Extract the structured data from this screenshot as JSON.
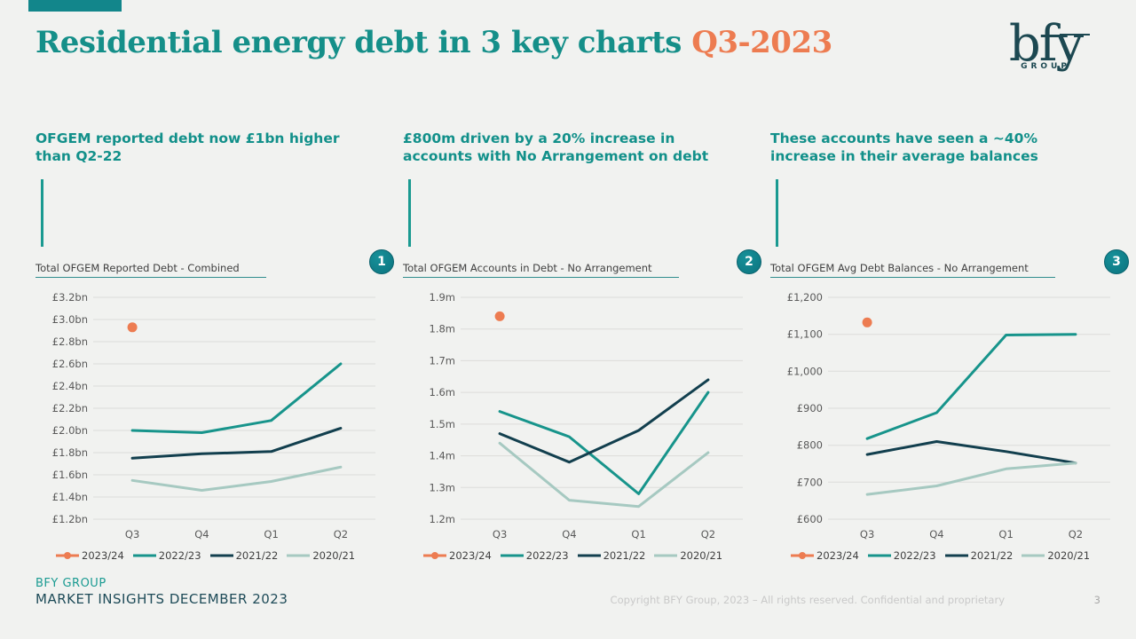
{
  "slide": {
    "title_main": "Residential energy debt in 3 key charts",
    "title_accent": "Q3-2023",
    "logo": {
      "text": "bfy",
      "subtext": "GROUP"
    },
    "footer": {
      "company": "BFY GROUP",
      "subtitle": "MARKET INSIGHTS DECEMBER 2023",
      "copyright": "Copyright BFY Group, 2023 – All rights reserved. Confidential and proprietary",
      "page_number": "3"
    },
    "colors": {
      "background": "#F1F2F0",
      "accent_teal": "#15908A",
      "accent_orange": "#ED7C51",
      "badge_teal": "#0E7F89",
      "gridline": "#DCDCDA",
      "tick_text": "#595959",
      "legend_text": "#3F3F3F"
    }
  },
  "chart_data": [
    {
      "type": "line",
      "heading": "OFGEM reported debt now £1bn higher than Q2-22",
      "title": "Total OFGEM Reported Debt - Combined",
      "badge": "1",
      "categories": [
        "Q3",
        "Q4",
        "Q1",
        "Q2"
      ],
      "ylim": [
        1.2,
        3.2
      ],
      "grid": true,
      "legend_position": "bottom",
      "y_ticks": [
        {
          "label": "£3.2bn",
          "value": 3.2
        },
        {
          "label": "£3.0bn",
          "value": 3.0
        },
        {
          "label": "£2.8bn",
          "value": 2.8
        },
        {
          "label": "£2.6bn",
          "value": 2.6
        },
        {
          "label": "£2.4bn",
          "value": 2.4
        },
        {
          "label": "£2.2bn",
          "value": 2.2
        },
        {
          "label": "£2.0bn",
          "value": 2.0
        },
        {
          "label": "£1.8bn",
          "value": 1.8
        },
        {
          "label": "£1.6bn",
          "value": 1.6
        },
        {
          "label": "£1.4bn",
          "value": 1.4
        },
        {
          "label": "£1.2bn",
          "value": 1.2
        }
      ],
      "series": [
        {
          "name": "2023/24",
          "color": "#ED7C51",
          "marker": "dot",
          "values": [
            2.93,
            null,
            null,
            null
          ]
        },
        {
          "name": "2022/23",
          "color": "#17948B",
          "values": [
            2.0,
            1.98,
            2.09,
            2.6
          ]
        },
        {
          "name": "2021/22",
          "color": "#123F4E",
          "values": [
            1.75,
            1.79,
            1.81,
            2.02
          ]
        },
        {
          "name": "2020/21",
          "color": "#A6C9C1",
          "values": [
            1.55,
            1.46,
            1.54,
            1.67
          ]
        }
      ]
    },
    {
      "type": "line",
      "heading": "£800m driven by a 20% increase in accounts with No Arrangement on debt",
      "title": "Total OFGEM Accounts in Debt - No Arrangement",
      "badge": "2",
      "categories": [
        "Q3",
        "Q4",
        "Q1",
        "Q2"
      ],
      "ylim": [
        1.2,
        1.9
      ],
      "grid": true,
      "legend_position": "bottom",
      "y_ticks": [
        {
          "label": "1.9m",
          "value": 1.9
        },
        {
          "label": "1.8m",
          "value": 1.8
        },
        {
          "label": "1.7m",
          "value": 1.7
        },
        {
          "label": "1.6m",
          "value": 1.6
        },
        {
          "label": "1.5m",
          "value": 1.5
        },
        {
          "label": "1.4m",
          "value": 1.4
        },
        {
          "label": "1.3m",
          "value": 1.3
        },
        {
          "label": "1.2m",
          "value": 1.2
        }
      ],
      "series": [
        {
          "name": "2023/24",
          "color": "#ED7C51",
          "marker": "dot",
          "values": [
            1.84,
            null,
            null,
            null
          ]
        },
        {
          "name": "2022/23",
          "color": "#17948B",
          "values": [
            1.54,
            1.46,
            1.28,
            1.6
          ]
        },
        {
          "name": "2021/22",
          "color": "#123F4E",
          "values": [
            1.47,
            1.38,
            1.48,
            1.64
          ]
        },
        {
          "name": "2020/21",
          "color": "#A6C9C1",
          "values": [
            1.44,
            1.26,
            1.24,
            1.41
          ]
        }
      ]
    },
    {
      "type": "line",
      "heading": "These accounts have seen a ~40% increase in their average balances",
      "title": "Total OFGEM Avg Debt Balances - No Arrangement",
      "badge": "3",
      "categories": [
        "Q3",
        "Q4",
        "Q1",
        "Q2"
      ],
      "ylim": [
        600,
        1200
      ],
      "grid": true,
      "legend_position": "bottom",
      "y_ticks": [
        {
          "label": "£1,200",
          "value": 1200
        },
        {
          "label": "£1,100",
          "value": 1100
        },
        {
          "label": "£1,000",
          "value": 1000
        },
        {
          "label": "£900",
          "value": 900
        },
        {
          "label": "£800",
          "value": 800
        },
        {
          "label": "£700",
          "value": 700
        },
        {
          "label": "£600",
          "value": 600
        }
      ],
      "series": [
        {
          "name": "2023/24",
          "color": "#ED7C51",
          "marker": "dot",
          "values": [
            1132,
            null,
            null,
            null
          ]
        },
        {
          "name": "2022/23",
          "color": "#17948B",
          "values": [
            818,
            888,
            1098,
            1100
          ]
        },
        {
          "name": "2021/22",
          "color": "#123F4E",
          "values": [
            775,
            810,
            783,
            752
          ]
        },
        {
          "name": "2020/21",
          "color": "#A6C9C1",
          "values": [
            667,
            690,
            736,
            752
          ]
        }
      ]
    }
  ]
}
